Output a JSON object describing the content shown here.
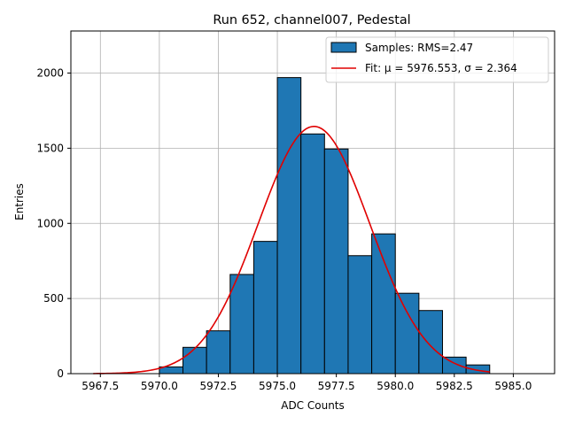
{
  "chart_data": {
    "type": "bar",
    "title": "Run 652, channel007, Pedestal",
    "xlabel": "ADC Counts",
    "ylabel": "Entries",
    "xlim": [
      5966.25,
      5986.75
    ],
    "ylim": [
      0,
      2280
    ],
    "grid": true,
    "legend_placement": "top-right",
    "x_ticks": [
      5967.5,
      5970.0,
      5972.5,
      5975.0,
      5977.5,
      5980.0,
      5982.5,
      5985.0
    ],
    "x_tick_labels": [
      "5967.5",
      "5970.0",
      "5972.5",
      "5975.0",
      "5977.5",
      "5980.0",
      "5982.5",
      "5985.0"
    ],
    "y_ticks": [
      0,
      500,
      1000,
      1500,
      2000
    ],
    "y_tick_labels": [
      "0",
      "500",
      "1000",
      "1500",
      "2000"
    ],
    "bin_width": 1,
    "bins": [
      {
        "left": 5970,
        "count": 45
      },
      {
        "left": 5971,
        "count": 175
      },
      {
        "left": 5972,
        "count": 285
      },
      {
        "left": 5973,
        "count": 660
      },
      {
        "left": 5974,
        "count": 880
      },
      {
        "left": 5975,
        "count": 1970
      },
      {
        "left": 5976,
        "count": 1595
      },
      {
        "left": 5977,
        "count": 1495
      },
      {
        "left": 5978,
        "count": 785
      },
      {
        "left": 5979,
        "count": 930
      },
      {
        "left": 5980,
        "count": 535
      },
      {
        "left": 5981,
        "count": 420
      },
      {
        "left": 5982,
        "count": 110
      },
      {
        "left": 5983,
        "count": 58
      }
    ],
    "fit": {
      "mu": 5976.553,
      "sigma": 2.364,
      "peak": 1645,
      "x_range": [
        5967.2,
        5984.0
      ]
    },
    "series": [
      {
        "name": "Samples: RMS=2.47",
        "color": "#1f77b4",
        "kind": "histogram"
      },
      {
        "name": "Fit: μ = 5976.553, σ = 2.364",
        "color": "#e00000",
        "kind": "line"
      }
    ]
  }
}
